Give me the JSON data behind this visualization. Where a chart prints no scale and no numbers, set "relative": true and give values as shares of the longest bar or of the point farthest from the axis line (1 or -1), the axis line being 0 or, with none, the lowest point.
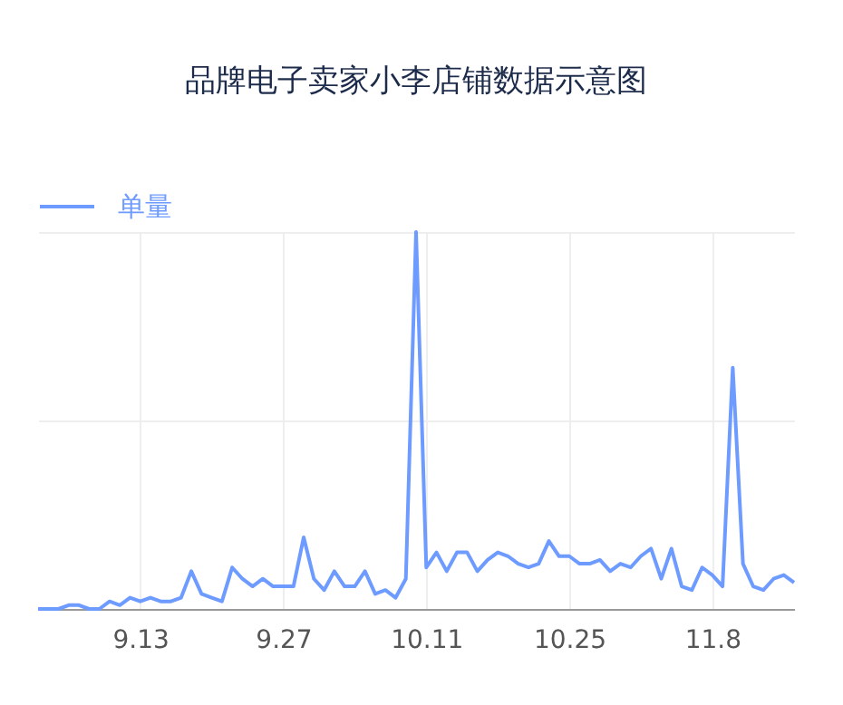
{
  "chart_data": {
    "type": "line",
    "title": "品牌电子卖家小李店铺数据示意图",
    "relative": true,
    "grid": true,
    "legend": "top left",
    "marker": "none",
    "line_style": "solid",
    "categories": [
      null,
      null,
      null,
      null,
      null,
      null,
      null,
      null,
      null,
      null,
      "9.13",
      null,
      null,
      null,
      null,
      null,
      null,
      null,
      null,
      null,
      null,
      null,
      null,
      null,
      "9.27",
      null,
      null,
      null,
      null,
      null,
      null,
      null,
      null,
      null,
      null,
      null,
      null,
      null,
      "10.11",
      null,
      null,
      null,
      null,
      null,
      null,
      null,
      null,
      null,
      null,
      null,
      null,
      null,
      "10.25",
      null,
      null,
      null,
      null,
      null,
      null,
      null,
      null,
      null,
      null,
      null,
      null,
      null,
      "11.8",
      null,
      null,
      null,
      null,
      null,
      null,
      null,
      null
    ],
    "series": [
      {
        "name": "单量",
        "color": "#6e9bff",
        "values": [
          0,
          0,
          0,
          0.01,
          0.01,
          0,
          0,
          0.02,
          0.01,
          0.03,
          0.02,
          0.03,
          0.02,
          0.02,
          0.03,
          0.1,
          0.04,
          0.03,
          0.02,
          0.11,
          0.08,
          0.06,
          0.08,
          0.06,
          0.06,
          0.06,
          0.19,
          0.08,
          0.05,
          0.1,
          0.06,
          0.06,
          0.1,
          0.04,
          0.05,
          0.03,
          0.08,
          1,
          0.11,
          0.15,
          0.1,
          0.15,
          0.15,
          0.1,
          0.13,
          0.15,
          0.14,
          0.12,
          0.11,
          0.12,
          0.18,
          0.14,
          0.14,
          0.12,
          0.12,
          0.13,
          0.1,
          0.12,
          0.11,
          0.14,
          0.16,
          0.08,
          0.16,
          0.06,
          0.05,
          0.11,
          0.09,
          0.06,
          0.64,
          0.12,
          0.06,
          0.05,
          0.08,
          0.09,
          0.07
        ]
      }
    ]
  }
}
